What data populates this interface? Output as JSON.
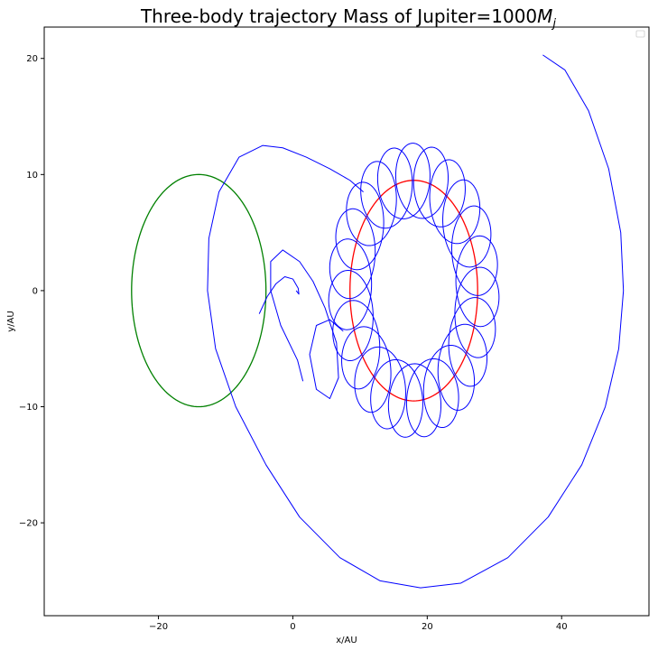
{
  "chart_data": {
    "type": "line",
    "title": "Three-body trajectory  Mass of Jupiter=1000",
    "title_math": "M",
    "title_math_sub": "j",
    "xlabel": "x/AU",
    "ylabel": "y/AU",
    "xlim": [
      -37,
      53
    ],
    "ylim": [
      -28,
      22.7
    ],
    "xticks": [
      -20,
      0,
      20,
      40
    ],
    "yticks": [
      -20,
      -10,
      0,
      10,
      20
    ],
    "xtick_labels": [
      "−20",
      "0",
      "20",
      "40"
    ],
    "ytick_labels": [
      "−20",
      "−10",
      "0",
      "10",
      "20"
    ],
    "grid": false,
    "legend_location": "upper right",
    "legend_entries": [],
    "colors": {
      "sun": "#008000",
      "jupiter": "#ff0000",
      "body": "#0000ff"
    },
    "series": [
      {
        "kind": "circle",
        "center": [
          -14.0,
          0.0
        ],
        "radius": 10.0,
        "color": "#008000"
      },
      {
        "kind": "circle",
        "center": [
          18.0,
          0.0
        ],
        "radius": 9.5,
        "color": "#ff0000"
      },
      {
        "kind": "path",
        "color": "#0000ff",
        "x": [
          37.2,
          40.5,
          44.0,
          47.0,
          48.8,
          49.2,
          48.5,
          46.5,
          43.0,
          38.0,
          32.0,
          25.0,
          19.0,
          13.0,
          7.0,
          1.0,
          -4.0,
          -8.5,
          -11.5,
          -12.7,
          -12.5,
          -11.0,
          -8.0,
          -4.5,
          -1.5,
          2.0,
          5.5,
          8.5,
          10.5
        ],
        "y": [
          20.3,
          19.0,
          15.5,
          10.5,
          5.0,
          0.0,
          -5.0,
          -10.0,
          -15.0,
          -19.5,
          -23.0,
          -25.2,
          -25.6,
          -25.0,
          -23.0,
          -19.5,
          -15.0,
          -10.0,
          -5.0,
          0.0,
          4.5,
          8.5,
          11.5,
          12.5,
          12.3,
          11.5,
          10.5,
          9.5,
          8.5
        ]
      },
      {
        "kind": "loop_band",
        "color": "#0000ff",
        "center": [
          18.0,
          0.0
        ],
        "guide_radius": 9.5,
        "loop_radius": 3.2,
        "start_angle_deg": 144,
        "end_angle_deg": -216,
        "loops": 22
      },
      {
        "kind": "path",
        "color": "#0000ff",
        "x": [
          1.5,
          0.7,
          -1.8,
          -3.3,
          -3.3,
          -1.5,
          1.0,
          3.0,
          4.8,
          6.5,
          6.8,
          5.5,
          3.5,
          2.5,
          3.5,
          5.5,
          7.5
        ],
        "y": [
          -7.8,
          -6.0,
          -3.0,
          0.0,
          2.5,
          3.5,
          2.5,
          0.8,
          -1.5,
          -4.5,
          -7.5,
          -9.3,
          -8.5,
          -5.5,
          -3.0,
          -2.5,
          -3.5
        ]
      },
      {
        "kind": "path",
        "color": "#0000ff",
        "x": [
          -5.0,
          -3.8,
          -2.5,
          -1.2,
          0.0,
          0.8,
          0.9,
          0.5
        ],
        "y": [
          -2.0,
          -0.5,
          0.6,
          1.2,
          1.0,
          0.2,
          -0.3,
          0.0
        ]
      }
    ]
  }
}
